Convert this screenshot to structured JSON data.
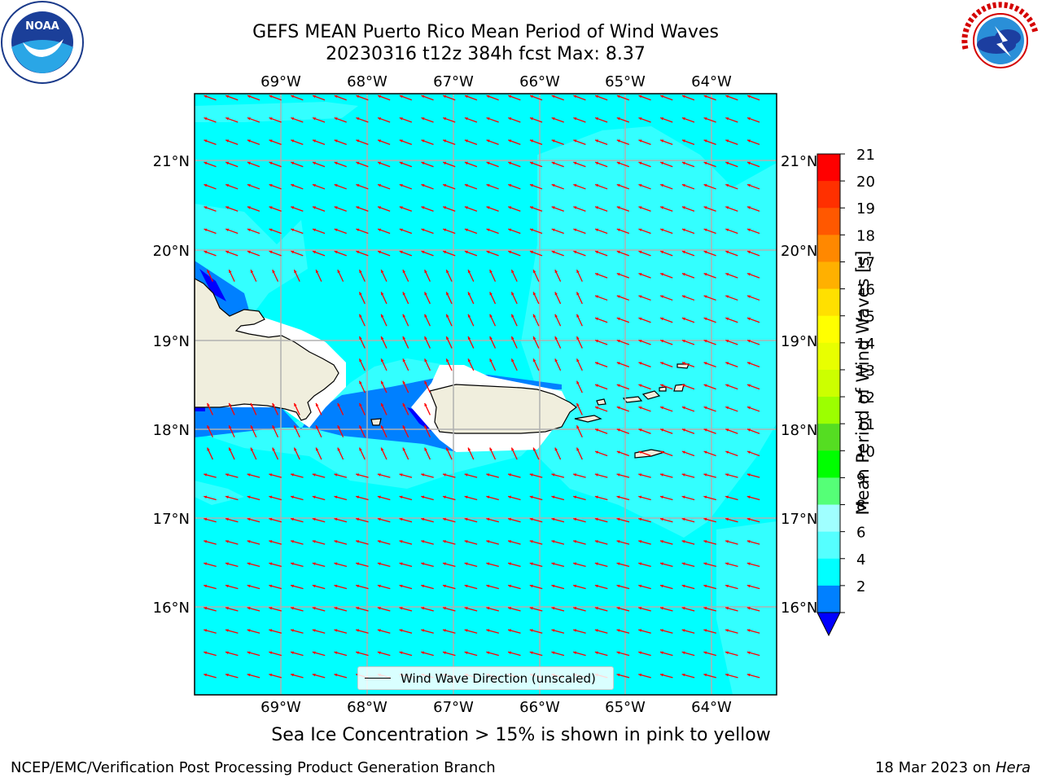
{
  "header": {
    "title_line1": "GEFS MEAN Puerto Rico Mean Period of Wind Waves",
    "title_line2": "20230316 t12z 384h fcst   Max: 8.37"
  },
  "logos": {
    "left": "NOAA",
    "right": "NATIONAL WEATHER SERVICE"
  },
  "map": {
    "lon_ticks": [
      "69°W",
      "68°W",
      "67°W",
      "66°W",
      "65°W",
      "64°W"
    ],
    "lat_ticks": [
      "21°N",
      "20°N",
      "19°N",
      "18°N",
      "17°N",
      "16°N"
    ],
    "legend_label": "Wind Wave Direction (unscaled)",
    "arrow_color": "#ff0000",
    "land_color": "#f0eedd",
    "ocean_colors": {
      "4-6": "#00ffff",
      "6-8": "#33ffff",
      "2-4": "#0080ff",
      "below_2": "#0000ff"
    }
  },
  "colorbar": {
    "label": "Mean Period of Wind Waves [s]",
    "ticks": [
      "21",
      "20",
      "19",
      "18",
      "17",
      "16",
      "15",
      "14",
      "13",
      "12",
      "11",
      "10",
      "9",
      "8",
      "6",
      "4",
      "2"
    ],
    "colors": [
      "#ff0000",
      "#ff3000",
      "#ff5800",
      "#ff8800",
      "#ffb000",
      "#ffe000",
      "#ffff00",
      "#e8ff00",
      "#ccff00",
      "#9cff00",
      "#55dd22",
      "#00ff00",
      "#55ff77",
      "#a0ffff",
      "#55ffff",
      "#00ffff",
      "#0080ff"
    ],
    "under_color": "#0000ff"
  },
  "caption": "Sea Ice Concentration > 15% is shown in pink to yellow",
  "footer": {
    "left": "NCEP/EMC/Verification Post Processing Product Generation Branch",
    "right_date": "18 Mar 2023 on ",
    "right_host": "Hera"
  }
}
